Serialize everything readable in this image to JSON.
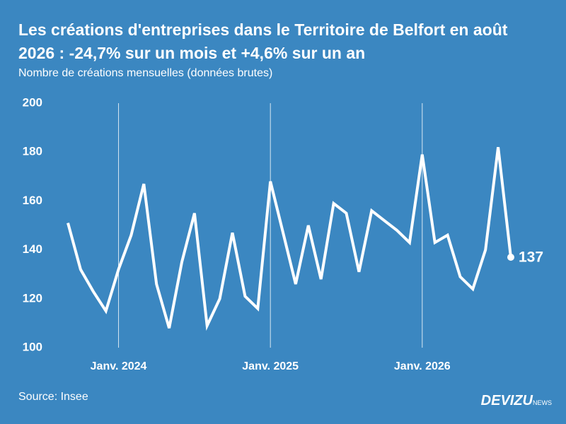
{
  "chart_data": {
    "type": "line",
    "title": "Les créations d'entreprises dans le Territoire de Belfort en août 2026 : -24,7% sur un mois et +4,6% sur un an",
    "subtitle": "Nombre de créations mensuelles (données brutes)",
    "source": "Source: Insee",
    "categories": [
      null,
      null,
      null,
      null,
      "Janv. 2024",
      null,
      null,
      null,
      null,
      null,
      null,
      null,
      null,
      null,
      null,
      null,
      "Janv. 2025",
      null,
      null,
      null,
      null,
      null,
      null,
      null,
      null,
      null,
      null,
      null,
      "Janv. 2026",
      null,
      null,
      null,
      null,
      null,
      null,
      null
    ],
    "values": [
      151,
      132,
      123,
      115,
      132,
      146,
      167,
      126,
      108,
      135,
      155,
      109,
      120,
      147,
      121,
      116,
      168,
      147,
      126,
      150,
      128,
      159,
      155,
      131,
      156,
      152,
      148,
      143,
      179,
      143,
      146,
      129,
      124,
      140,
      182,
      137
    ],
    "color": "#ffffff",
    "ylim": [
      100,
      200
    ],
    "yticks": [
      100,
      120,
      140,
      160,
      180,
      200
    ],
    "grid": "x"
  },
  "brand": {
    "name": "DEVIZU",
    "tag": "NEWS"
  }
}
